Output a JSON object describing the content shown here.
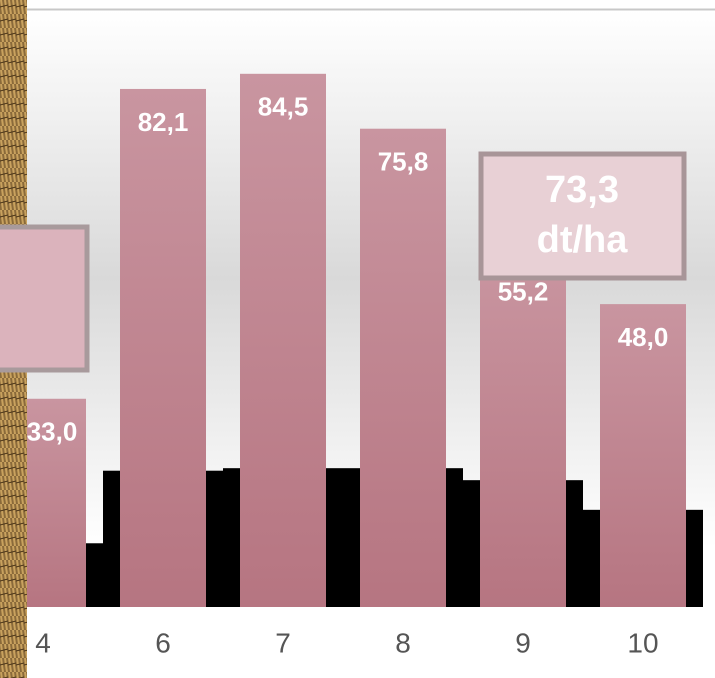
{
  "chart_data": {
    "type": "bar",
    "categories": [
      "4",
      "6",
      "7",
      "8",
      "9",
      "10"
    ],
    "series": [
      {
        "color": "#000000",
        "values": [
          10.1,
          21.6,
          22.0,
          22.0,
          20.1,
          15.4
        ]
      },
      {
        "color": "#c1909a",
        "values": [
          33.0,
          82.1,
          84.5,
          75.8,
          55.2,
          48.0
        ],
        "value_labels": [
          "33,0",
          "82,1",
          "84,5",
          "75,8",
          "55,2",
          "48,0"
        ]
      }
    ],
    "ylim": [
      0,
      90
    ],
    "annotations": [
      {
        "lines": [
          "73,3",
          "dt/ha"
        ]
      }
    ]
  }
}
